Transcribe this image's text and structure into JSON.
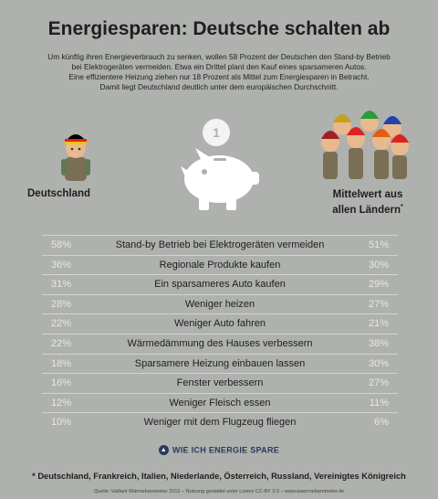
{
  "title": "Energiesparen: Deutsche schalten ab",
  "intro": [
    "Um künftig ihren Energieverbrauch zu senken, wollen 58 Prozent der Deutschen den Stand-by Betrieb",
    "bei Elektrogeräten vermeiden. Etwa ein Drittel plant den Kauf eines sparsameren Autos.",
    "Eine effizientere Heizung ziehen nur 18 Prozent als Mittel zum Energiesparen in Betracht.",
    "Damit liegt Deutschland deutlich unter dem europäischen Durchschnitt."
  ],
  "coin_label": "1",
  "label_left": "Deutschland",
  "label_right_line1": "Mittelwert aus",
  "label_right_line2": "allen Ländern",
  "label_right_mark": "*",
  "link_icon": "chevron-up-icon",
  "link_text": "WIE ICH ENERGIE SPARE",
  "footnote": "* Deutschland, Frankreich, Italien, Niederlande, Österreich, Russland, Vereinigtes Königreich",
  "source": "Quelle: Vaillant Wärmebarometer 2012 – Nutzung gestattet unter Lizenz CC-BY 3.0 – www.waermebarometer.de",
  "colors": {
    "background": "#aeb1ad",
    "percent_text": "#e8e8e6",
    "link": "#2a3a5c"
  },
  "chart_data": {
    "type": "table",
    "columns": [
      "Deutschland",
      "Mittelwert aus allen Ländern"
    ],
    "rows": [
      {
        "label": "Stand-by Betrieb bei Elektrogeräten vermeiden",
        "de": "58%",
        "avg": "51%"
      },
      {
        "label": "Regionale Produkte kaufen",
        "de": "36%",
        "avg": "30%"
      },
      {
        "label": "Ein sparsameres Auto kaufen",
        "de": "31%",
        "avg": "29%"
      },
      {
        "label": "Weniger heizen",
        "de": "28%",
        "avg": "27%"
      },
      {
        "label": "Weniger Auto fahren",
        "de": "22%",
        "avg": "21%"
      },
      {
        "label": "Wärmedämmung des Hauses verbessern",
        "de": "22%",
        "avg": "38%"
      },
      {
        "label": "Sparsamere Heizung einbauen lassen",
        "de": "18%",
        "avg": "30%"
      },
      {
        "label": "Fenster verbessern",
        "de": "16%",
        "avg": "27%"
      },
      {
        "label": "Weniger Fleisch essen",
        "de": "12%",
        "avg": "11%"
      },
      {
        "label": "Weniger mit dem Flugzeug fliegen",
        "de": "10%",
        "avg": "6%"
      }
    ]
  }
}
